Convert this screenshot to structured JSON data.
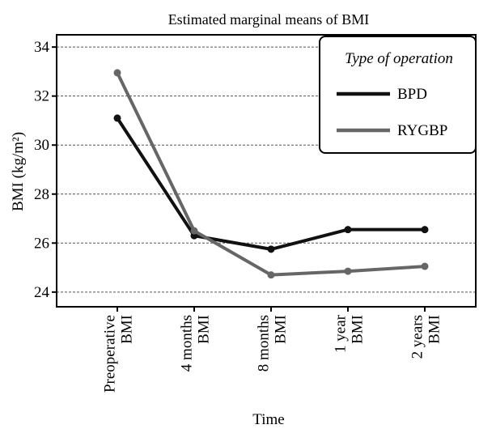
{
  "chart_data": {
    "type": "line",
    "title": "Estimated marginal means of BMI",
    "xlabel": "Time",
    "ylabel": "BMI (kg/m²)",
    "categories": [
      [
        "Preoperative",
        "BMI"
      ],
      [
        "4 months",
        "BMI"
      ],
      [
        "8 months",
        "BMI"
      ],
      [
        "1 year",
        "BMI"
      ],
      [
        "2 years",
        "BMI"
      ]
    ],
    "yticks": [
      "24",
      "26",
      "28",
      "30",
      "32",
      "34"
    ],
    "ylim": [
      23.4,
      34.5
    ],
    "grid": "horizontal-dashed",
    "legend": {
      "title": "Type of operation",
      "position": "top-right"
    },
    "series": [
      {
        "name": "BPD",
        "color": "#111111",
        "values": [
          31.1,
          26.3,
          25.75,
          26.55,
          26.55
        ]
      },
      {
        "name": "RYGBP",
        "color": "#666666",
        "values": [
          32.95,
          26.5,
          24.7,
          24.85,
          25.05
        ]
      }
    ]
  }
}
